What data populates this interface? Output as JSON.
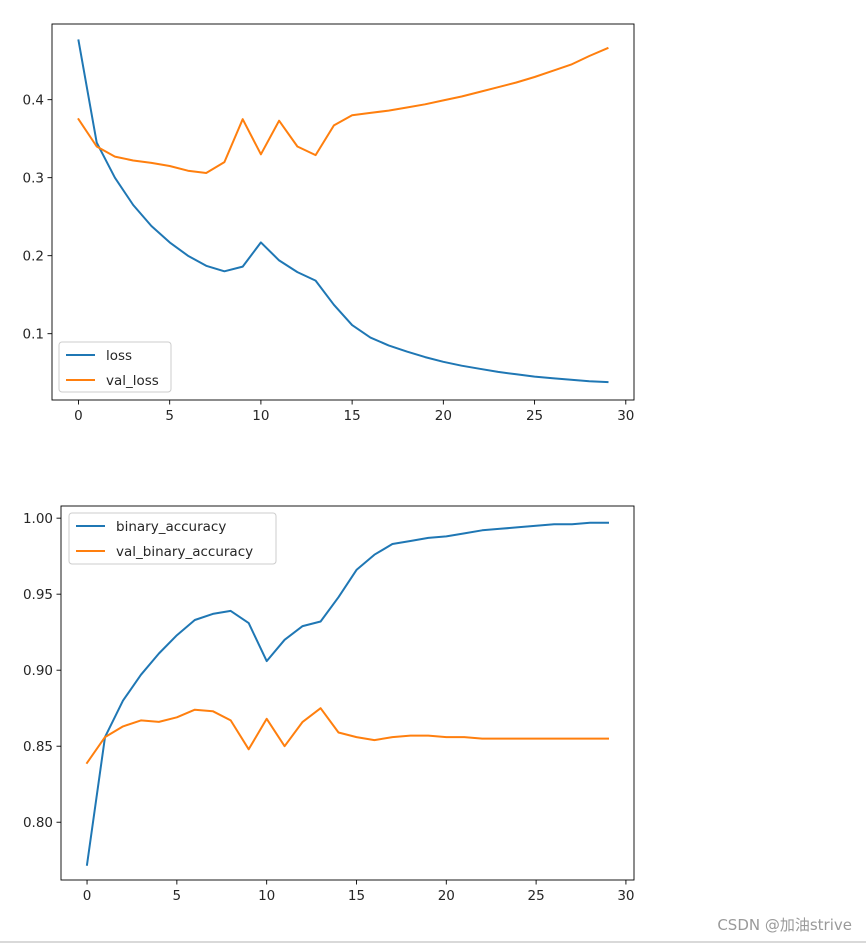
{
  "chart_data": [
    {
      "type": "line",
      "title": "",
      "xlabel": "",
      "ylabel": "",
      "xlim": [
        -1.45,
        30.45
      ],
      "ylim": [
        0.015,
        0.497
      ],
      "xticks": [
        0,
        5,
        10,
        15,
        20,
        25,
        30
      ],
      "yticks": [
        0.1,
        0.2,
        0.3,
        0.4
      ],
      "xtick_labels": [
        "0",
        "5",
        "10",
        "15",
        "20",
        "25",
        "30"
      ],
      "ytick_labels": [
        "0.1",
        "0.2",
        "0.3",
        "0.4"
      ],
      "grid": false,
      "legend_position": "lower-left",
      "x": [
        0,
        1,
        2,
        3,
        4,
        5,
        6,
        7,
        8,
        9,
        10,
        11,
        12,
        13,
        14,
        15,
        16,
        17,
        18,
        19,
        20,
        21,
        22,
        23,
        24,
        25,
        26,
        27,
        28,
        29
      ],
      "series": [
        {
          "name": "loss",
          "color": "#1f77b4",
          "values": [
            0.476,
            0.345,
            0.3,
            0.265,
            0.238,
            0.217,
            0.2,
            0.187,
            0.18,
            0.186,
            0.217,
            0.194,
            0.179,
            0.168,
            0.137,
            0.111,
            0.095,
            0.085,
            0.077,
            0.07,
            0.064,
            0.059,
            0.055,
            0.051,
            0.048,
            0.045,
            0.043,
            0.041,
            0.039,
            0.038
          ]
        },
        {
          "name": "val_loss",
          "color": "#ff7f0e",
          "values": [
            0.375,
            0.34,
            0.327,
            0.322,
            0.319,
            0.315,
            0.309,
            0.306,
            0.32,
            0.375,
            0.33,
            0.373,
            0.34,
            0.329,
            0.367,
            0.38,
            0.383,
            0.386,
            0.39,
            0.394,
            0.399,
            0.404,
            0.41,
            0.416,
            0.422,
            0.429,
            0.437,
            0.445,
            0.456,
            0.466
          ]
        }
      ]
    },
    {
      "type": "line",
      "title": "",
      "xlabel": "",
      "ylabel": "",
      "xlim": [
        -1.45,
        30.45
      ],
      "ylim": [
        0.762,
        1.008
      ],
      "xticks": [
        0,
        5,
        10,
        15,
        20,
        25,
        30
      ],
      "yticks": [
        0.8,
        0.85,
        0.9,
        0.95,
        1.0
      ],
      "xtick_labels": [
        "0",
        "5",
        "10",
        "15",
        "20",
        "25",
        "30"
      ],
      "ytick_labels": [
        "0.80",
        "0.85",
        "0.90",
        "0.95",
        "1.00"
      ],
      "grid": false,
      "legend_position": "upper-left",
      "x": [
        0,
        1,
        2,
        3,
        4,
        5,
        6,
        7,
        8,
        9,
        10,
        11,
        12,
        13,
        14,
        15,
        16,
        17,
        18,
        19,
        20,
        21,
        22,
        23,
        24,
        25,
        26,
        27,
        28,
        29
      ],
      "series": [
        {
          "name": "binary_accuracy",
          "color": "#1f77b4",
          "values": [
            0.772,
            0.856,
            0.88,
            0.897,
            0.911,
            0.923,
            0.933,
            0.937,
            0.939,
            0.931,
            0.906,
            0.92,
            0.929,
            0.932,
            0.948,
            0.966,
            0.976,
            0.983,
            0.985,
            0.987,
            0.988,
            0.99,
            0.992,
            0.993,
            0.994,
            0.995,
            0.996,
            0.996,
            0.997,
            0.997
          ]
        },
        {
          "name": "val_binary_accuracy",
          "color": "#ff7f0e",
          "values": [
            0.839,
            0.856,
            0.863,
            0.867,
            0.866,
            0.869,
            0.874,
            0.873,
            0.867,
            0.848,
            0.868,
            0.85,
            0.866,
            0.875,
            0.859,
            0.856,
            0.854,
            0.856,
            0.857,
            0.857,
            0.856,
            0.856,
            0.855,
            0.855,
            0.855,
            0.855,
            0.855,
            0.855,
            0.855,
            0.855
          ]
        }
      ]
    }
  ],
  "watermark": "CSDN @加油strive"
}
